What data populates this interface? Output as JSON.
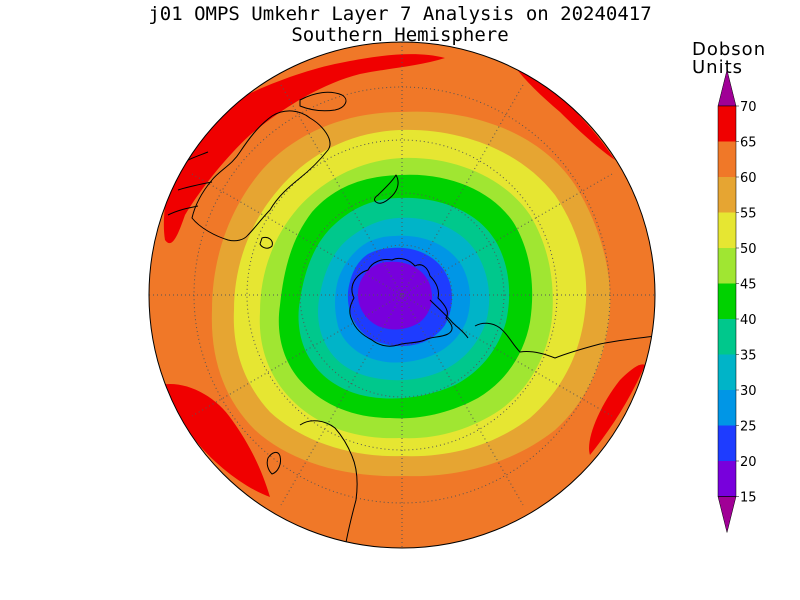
{
  "title": {
    "line1": "j01 OMPS Umkehr Layer 7 Analysis on 20240417",
    "line2": "Southern Hemisphere"
  },
  "colorbar": {
    "units_line1": "Dobson",
    "units_line2": "Units",
    "ticks": [
      "70",
      "65",
      "60",
      "55",
      "50",
      "45",
      "40",
      "35",
      "30",
      "25",
      "20",
      "15"
    ],
    "bins": [
      {
        "min": 65,
        "max": 70,
        "color": "#f00000"
      },
      {
        "min": 60,
        "max": 65,
        "color": "#f07828"
      },
      {
        "min": 55,
        "max": 60,
        "color": "#e6a532"
      },
      {
        "min": 50,
        "max": 55,
        "color": "#e6e632"
      },
      {
        "min": 45,
        "max": 50,
        "color": "#a0e632"
      },
      {
        "min": 40,
        "max": 45,
        "color": "#00d200"
      },
      {
        "min": 35,
        "max": 40,
        "color": "#00c88c"
      },
      {
        "min": 30,
        "max": 35,
        "color": "#00b4c8"
      },
      {
        "min": 25,
        "max": 30,
        "color": "#0096e6"
      },
      {
        "min": 20,
        "max": 25,
        "color": "#1e3cff"
      },
      {
        "min": 15,
        "max": 20,
        "color": "#7800dc"
      }
    ],
    "over_color": "#a00096",
    "under_color": "#a00096"
  },
  "map": {
    "projection": "polar-stereographic",
    "hemisphere": "south",
    "outside_color": "#f07828",
    "coastline_color": "#000000",
    "grid_color": "#555555"
  }
}
